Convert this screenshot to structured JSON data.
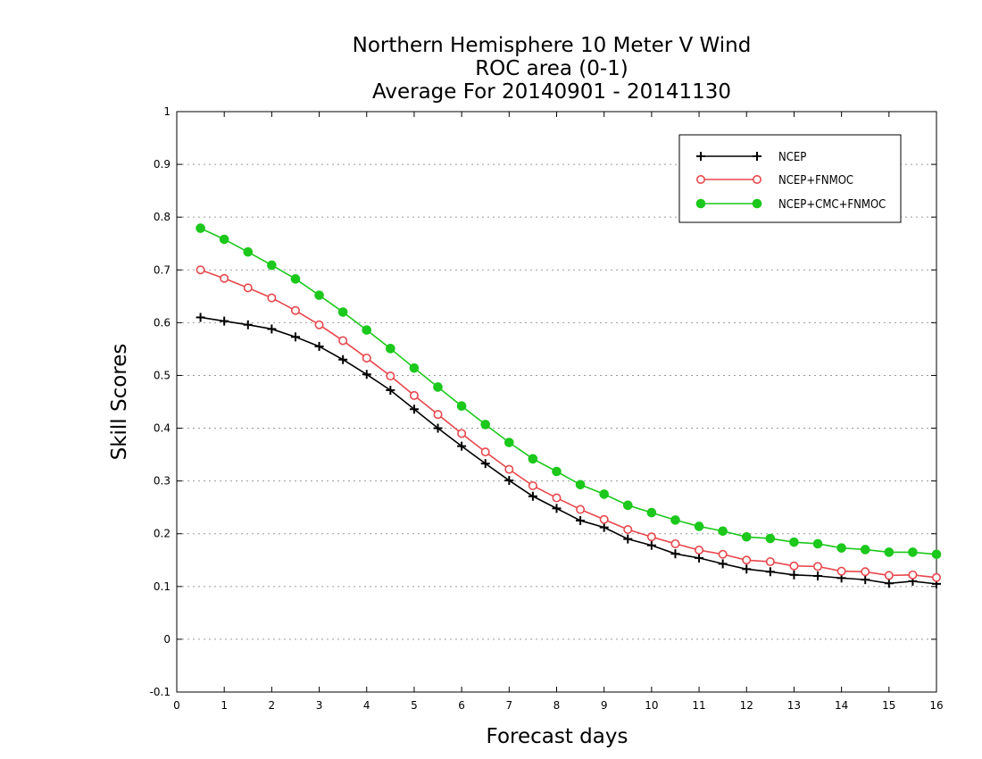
{
  "chart_data": {
    "type": "line",
    "title_lines": [
      "Northern Hemisphere 10 Meter V Wind",
      "ROC area (0-1)",
      "Average For 20140901 - 20141130"
    ],
    "xlabel": "Forecast days",
    "ylabel": "Skill Scores",
    "xlim": [
      0,
      16
    ],
    "ylim": [
      -0.1,
      1
    ],
    "x_ticks": [
      0,
      1,
      2,
      3,
      4,
      5,
      6,
      7,
      8,
      9,
      10,
      11,
      12,
      13,
      14,
      15,
      16
    ],
    "y_ticks": [
      -0.1,
      0,
      0.1,
      0.2,
      0.3,
      0.4,
      0.5,
      0.6,
      0.7,
      0.8,
      0.9,
      1
    ],
    "y_tick_labels": [
      "-0.1",
      "0",
      "0.1",
      "0.2",
      "0.3",
      "0.4",
      "0.5",
      "0.6",
      "0.7",
      "0.8",
      "0.9",
      "1"
    ],
    "grid": "horizontal dotted",
    "legend_position": "top-right",
    "x": [
      0.5,
      1,
      1.5,
      2,
      2.5,
      3,
      3.5,
      4,
      4.5,
      5,
      5.5,
      6,
      6.5,
      7,
      7.5,
      8,
      8.5,
      9,
      9.5,
      10,
      10.5,
      11,
      11.5,
      12,
      12.5,
      13,
      13.5,
      14,
      14.5,
      15,
      15.5,
      16
    ],
    "series": [
      {
        "name": "NCEP",
        "color": "#000000",
        "marker": "plus",
        "values": [
          0.61,
          0.603,
          0.596,
          0.588,
          0.573,
          0.555,
          0.53,
          0.502,
          0.472,
          0.436,
          0.4,
          0.366,
          0.333,
          0.301,
          0.271,
          0.248,
          0.225,
          0.212,
          0.19,
          0.178,
          0.162,
          0.154,
          0.143,
          0.133,
          0.128,
          0.122,
          0.12,
          0.116,
          0.113,
          0.106,
          0.11,
          0.105
        ]
      },
      {
        "name": "NCEP+FNMOC",
        "color": "#e8474c",
        "marker": "open-circle",
        "values": [
          0.7,
          0.684,
          0.666,
          0.647,
          0.623,
          0.596,
          0.566,
          0.533,
          0.499,
          0.462,
          0.426,
          0.39,
          0.355,
          0.322,
          0.291,
          0.268,
          0.246,
          0.227,
          0.208,
          0.194,
          0.181,
          0.169,
          0.161,
          0.15,
          0.147,
          0.139,
          0.138,
          0.129,
          0.128,
          0.121,
          0.122,
          0.117
        ]
      },
      {
        "name": "NCEP+CMC+FNMOC",
        "color": "#1bc81b",
        "marker": "filled-circle",
        "values": [
          0.779,
          0.758,
          0.734,
          0.709,
          0.683,
          0.652,
          0.62,
          0.586,
          0.551,
          0.514,
          0.478,
          0.442,
          0.407,
          0.373,
          0.342,
          0.318,
          0.293,
          0.275,
          0.254,
          0.24,
          0.226,
          0.214,
          0.205,
          0.194,
          0.191,
          0.184,
          0.181,
          0.173,
          0.17,
          0.165,
          0.165,
          0.161
        ]
      }
    ]
  }
}
